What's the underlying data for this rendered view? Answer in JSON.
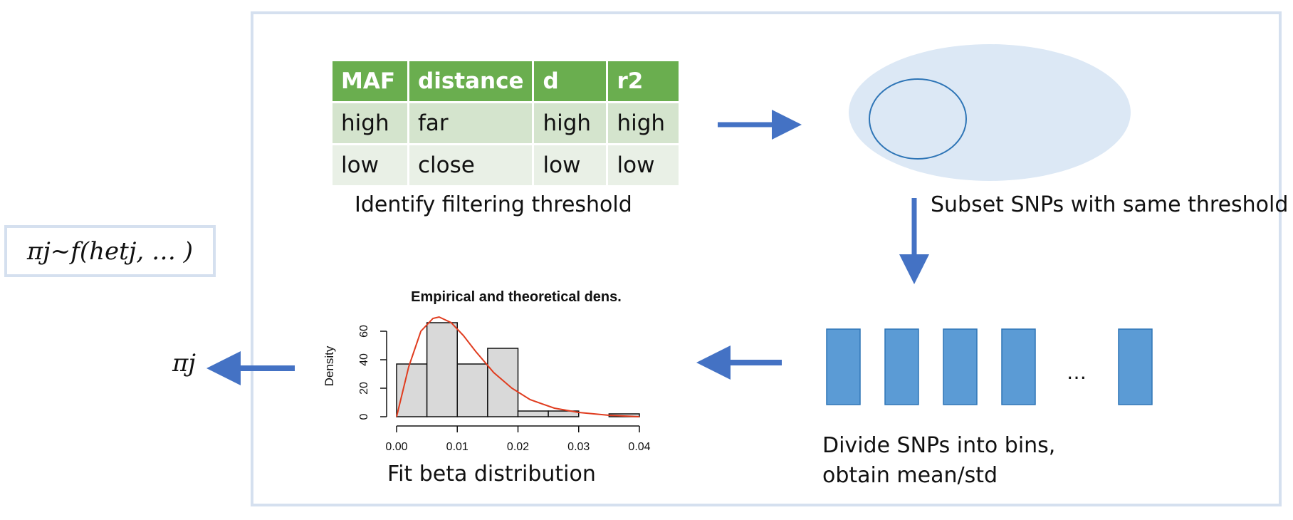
{
  "formula": "πj~f(hetj, … )",
  "pi_label": "πj",
  "table": {
    "headers": [
      "MAF",
      "distance",
      "d",
      "r2"
    ],
    "rows": [
      [
        "high",
        "far",
        "high",
        "high"
      ],
      [
        "low",
        "close",
        "low",
        "low"
      ]
    ]
  },
  "captions": {
    "identify": "Identify filtering threshold",
    "subset": "Subset SNPs with same threshold",
    "divide_line1": "Divide SNPs into bins,",
    "divide_line2": "obtain mean/std",
    "fit": "Fit beta distribution"
  },
  "bins_ellipsis": "…",
  "colors": {
    "frame": "#d5e0ef",
    "arrow": "#4472c4",
    "bins": "#5b9bd5",
    "ellipse_fill": "#dce8f5",
    "header_green": "#6aae4f",
    "curve": "#e03c1f"
  },
  "chart_data": {
    "type": "bar",
    "title": "Empirical and theoretical dens.",
    "ylabel": "Density",
    "xlabel": "",
    "bin_edges": [
      0.0,
      0.005,
      0.01,
      0.015,
      0.02,
      0.025,
      0.03,
      0.035,
      0.04
    ],
    "values": [
      37,
      66,
      37,
      48,
      4,
      4,
      0,
      2
    ],
    "xlim": [
      0.0,
      0.04
    ],
    "ylim": [
      0,
      70
    ],
    "xticks": [
      "0.00",
      "0.01",
      "0.02",
      "0.03",
      "0.04"
    ],
    "yticks": [
      "0",
      "20",
      "40",
      "60"
    ],
    "curve": {
      "type": "beta density",
      "points": [
        [
          0.0,
          0
        ],
        [
          0.002,
          35
        ],
        [
          0.004,
          60
        ],
        [
          0.006,
          69
        ],
        [
          0.007,
          70
        ],
        [
          0.009,
          66
        ],
        [
          0.011,
          57
        ],
        [
          0.013,
          46
        ],
        [
          0.016,
          31
        ],
        [
          0.019,
          20
        ],
        [
          0.022,
          12
        ],
        [
          0.026,
          6
        ],
        [
          0.03,
          3
        ],
        [
          0.035,
          1
        ],
        [
          0.04,
          0
        ]
      ]
    }
  }
}
